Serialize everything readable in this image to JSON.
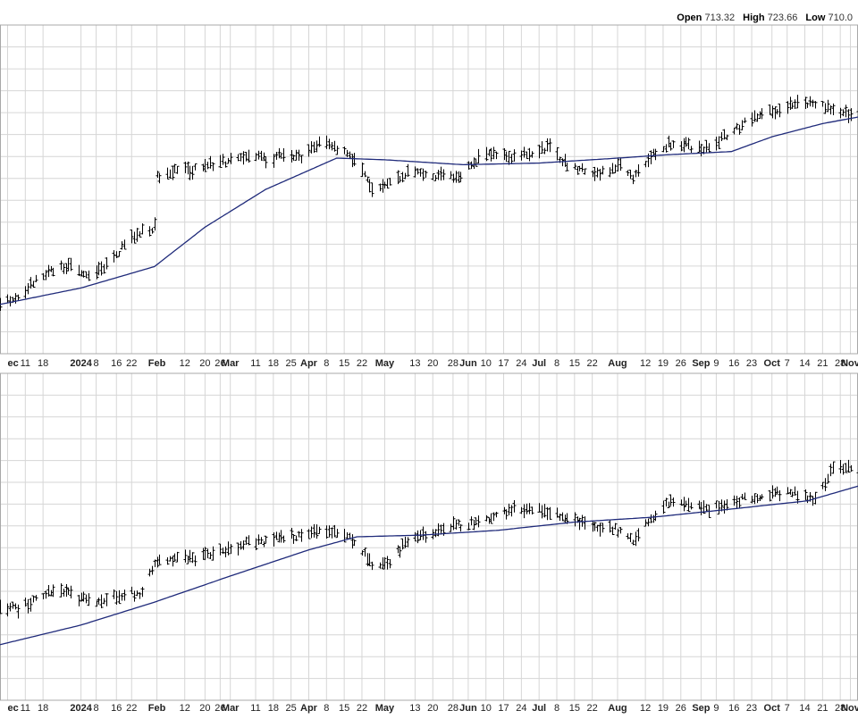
{
  "readout": {
    "open_label": "Open",
    "open_value": "713.32",
    "high_label": "High",
    "high_value": "723.66",
    "low_label": "Low",
    "low_value": "710.0"
  },
  "x_axis_labels": [
    {
      "date": "2023-12-04",
      "text": "ec",
      "bold": true
    },
    {
      "date": "2023-12-11",
      "text": "11",
      "bold": false
    },
    {
      "date": "2023-12-18",
      "text": "18",
      "bold": false
    },
    {
      "date": "2024-01-02",
      "text": "2024",
      "bold": true
    },
    {
      "date": "2024-01-08",
      "text": "8",
      "bold": false
    },
    {
      "date": "2024-01-16",
      "text": "16",
      "bold": false
    },
    {
      "date": "2024-01-22",
      "text": "22",
      "bold": false
    },
    {
      "date": "2024-02-01",
      "text": "Feb",
      "bold": true
    },
    {
      "date": "2024-02-12",
      "text": "12",
      "bold": false
    },
    {
      "date": "2024-02-20",
      "text": "20",
      "bold": false
    },
    {
      "date": "2024-02-26",
      "text": "26",
      "bold": false
    },
    {
      "date": "2024-03-01",
      "text": "Mar",
      "bold": true
    },
    {
      "date": "2024-03-11",
      "text": "11",
      "bold": false
    },
    {
      "date": "2024-03-18",
      "text": "18",
      "bold": false
    },
    {
      "date": "2024-03-25",
      "text": "25",
      "bold": false
    },
    {
      "date": "2024-04-01",
      "text": "Apr",
      "bold": true
    },
    {
      "date": "2024-04-08",
      "text": "8",
      "bold": false
    },
    {
      "date": "2024-04-15",
      "text": "15",
      "bold": false
    },
    {
      "date": "2024-04-22",
      "text": "22",
      "bold": false
    },
    {
      "date": "2024-05-01",
      "text": "May",
      "bold": true
    },
    {
      "date": "2024-05-13",
      "text": "13",
      "bold": false
    },
    {
      "date": "2024-05-20",
      "text": "20",
      "bold": false
    },
    {
      "date": "2024-05-28",
      "text": "28",
      "bold": false
    },
    {
      "date": "2024-06-03",
      "text": "Jun",
      "bold": true
    },
    {
      "date": "2024-06-10",
      "text": "10",
      "bold": false
    },
    {
      "date": "2024-06-17",
      "text": "17",
      "bold": false
    },
    {
      "date": "2024-06-24",
      "text": "24",
      "bold": false
    },
    {
      "date": "2024-07-01",
      "text": "Jul",
      "bold": true
    },
    {
      "date": "2024-07-08",
      "text": "8",
      "bold": false
    },
    {
      "date": "2024-07-15",
      "text": "15",
      "bold": false
    },
    {
      "date": "2024-07-22",
      "text": "22",
      "bold": false
    },
    {
      "date": "2024-08-01",
      "text": "Aug",
      "bold": true
    },
    {
      "date": "2024-08-12",
      "text": "12",
      "bold": false
    },
    {
      "date": "2024-08-19",
      "text": "19",
      "bold": false
    },
    {
      "date": "2024-08-26",
      "text": "26",
      "bold": false
    },
    {
      "date": "2024-09-03",
      "text": "Sep",
      "bold": true
    },
    {
      "date": "2024-09-09",
      "text": "9",
      "bold": false
    },
    {
      "date": "2024-09-16",
      "text": "16",
      "bold": false
    },
    {
      "date": "2024-09-23",
      "text": "23",
      "bold": false
    },
    {
      "date": "2024-10-01",
      "text": "Oct",
      "bold": true
    },
    {
      "date": "2024-10-07",
      "text": "7",
      "bold": false
    },
    {
      "date": "2024-10-14",
      "text": "14",
      "bold": false
    },
    {
      "date": "2024-10-21",
      "text": "21",
      "bold": false
    },
    {
      "date": "2024-10-28",
      "text": "28",
      "bold": false
    },
    {
      "date": "2024-11-01",
      "text": "Nov",
      "bold": true
    }
  ],
  "colors": {
    "grid": "#d6d6d6",
    "panel_border": "#a8a8a8",
    "price_bar": "#000000",
    "moving_average": "#1f2a7a",
    "axis_text": "#222222",
    "gap": "#ffffff"
  },
  "chart_data": [
    {
      "type": "ohlc",
      "title": "",
      "x_start": "2023-12-01",
      "x_end": "2024-11-04",
      "y_range": [
        0.0,
        1.0
      ],
      "grid": true,
      "moving_average_line": true,
      "anchors": [
        [
          "2023-12-01",
          0.155
        ],
        [
          "2023-12-08",
          0.175
        ],
        [
          "2023-12-15",
          0.225
        ],
        [
          "2023-12-22",
          0.255
        ],
        [
          "2023-12-29",
          0.265
        ],
        [
          "2024-01-05",
          0.23
        ],
        [
          "2024-01-12",
          0.27
        ],
        [
          "2024-01-19",
          0.33
        ],
        [
          "2024-01-26",
          0.375
        ],
        [
          "2024-01-31",
          0.385
        ],
        [
          "2024-02-01",
          0.54
        ],
        [
          "2024-02-09",
          0.555
        ],
        [
          "2024-02-16",
          0.56
        ],
        [
          "2024-02-23",
          0.575
        ],
        [
          "2024-02-29",
          0.585
        ],
        [
          "2024-03-08",
          0.6
        ],
        [
          "2024-03-15",
          0.59
        ],
        [
          "2024-03-22",
          0.605
        ],
        [
          "2024-03-29",
          0.6
        ],
        [
          "2024-04-05",
          0.64
        ],
        [
          "2024-04-12",
          0.625
        ],
        [
          "2024-04-19",
          0.59
        ],
        [
          "2024-04-26",
          0.5
        ],
        [
          "2024-05-03",
          0.52
        ],
        [
          "2024-05-10",
          0.555
        ],
        [
          "2024-05-17",
          0.545
        ],
        [
          "2024-05-24",
          0.54
        ],
        [
          "2024-05-31",
          0.545
        ],
        [
          "2024-06-07",
          0.595
        ],
        [
          "2024-06-14",
          0.605
        ],
        [
          "2024-06-21",
          0.6
        ],
        [
          "2024-06-28",
          0.615
        ],
        [
          "2024-07-05",
          0.63
        ],
        [
          "2024-07-12",
          0.57
        ],
        [
          "2024-07-19",
          0.56
        ],
        [
          "2024-07-26",
          0.55
        ],
        [
          "2024-08-02",
          0.575
        ],
        [
          "2024-08-07",
          0.535
        ],
        [
          "2024-08-14",
          0.6
        ],
        [
          "2024-08-21",
          0.64
        ],
        [
          "2024-08-28",
          0.635
        ],
        [
          "2024-09-06",
          0.62
        ],
        [
          "2024-09-13",
          0.665
        ],
        [
          "2024-09-20",
          0.7
        ],
        [
          "2024-09-27",
          0.735
        ],
        [
          "2024-10-04",
          0.74
        ],
        [
          "2024-10-11",
          0.77
        ],
        [
          "2024-10-18",
          0.76
        ],
        [
          "2024-10-25",
          0.75
        ],
        [
          "2024-11-01",
          0.72
        ]
      ],
      "ma_anchors": [
        [
          "2023-12-01",
          0.15
        ],
        [
          "2024-01-02",
          0.2
        ],
        [
          "2024-01-31",
          0.265
        ],
        [
          "2024-02-20",
          0.385
        ],
        [
          "2024-03-15",
          0.5
        ],
        [
          "2024-04-12",
          0.595
        ],
        [
          "2024-05-01",
          0.59
        ],
        [
          "2024-06-01",
          0.575
        ],
        [
          "2024-07-01",
          0.58
        ],
        [
          "2024-08-01",
          0.595
        ],
        [
          "2024-08-20",
          0.605
        ],
        [
          "2024-09-15",
          0.615
        ],
        [
          "2024-10-01",
          0.66
        ],
        [
          "2024-10-21",
          0.7
        ],
        [
          "2024-11-04",
          0.72
        ]
      ]
    },
    {
      "type": "ohlc",
      "title": "",
      "x_start": "2023-12-01",
      "x_end": "2024-11-04",
      "y_range": [
        0.0,
        1.0
      ],
      "grid": true,
      "moving_average_line": true,
      "anchors": [
        [
          "2023-12-01",
          0.29
        ],
        [
          "2023-12-08",
          0.28
        ],
        [
          "2023-12-15",
          0.31
        ],
        [
          "2023-12-22",
          0.335
        ],
        [
          "2023-12-29",
          0.325
        ],
        [
          "2024-01-05",
          0.3
        ],
        [
          "2024-01-12",
          0.31
        ],
        [
          "2024-01-19",
          0.325
        ],
        [
          "2024-01-26",
          0.33
        ],
        [
          "2024-01-31",
          0.42
        ],
        [
          "2024-02-09",
          0.435
        ],
        [
          "2024-02-16",
          0.43
        ],
        [
          "2024-02-23",
          0.45
        ],
        [
          "2024-02-29",
          0.465
        ],
        [
          "2024-03-08",
          0.48
        ],
        [
          "2024-03-15",
          0.485
        ],
        [
          "2024-03-22",
          0.5
        ],
        [
          "2024-03-29",
          0.505
        ],
        [
          "2024-04-05",
          0.52
        ],
        [
          "2024-04-12",
          0.515
        ],
        [
          "2024-04-19",
          0.49
        ],
        [
          "2024-04-26",
          0.42
        ],
        [
          "2024-05-03",
          0.425
        ],
        [
          "2024-05-10",
          0.49
        ],
        [
          "2024-05-17",
          0.505
        ],
        [
          "2024-05-24",
          0.53
        ],
        [
          "2024-05-31",
          0.535
        ],
        [
          "2024-06-07",
          0.545
        ],
        [
          "2024-06-14",
          0.56
        ],
        [
          "2024-06-21",
          0.585
        ],
        [
          "2024-06-28",
          0.59
        ],
        [
          "2024-07-05",
          0.575
        ],
        [
          "2024-07-12",
          0.555
        ],
        [
          "2024-07-19",
          0.54
        ],
        [
          "2024-07-26",
          0.53
        ],
        [
          "2024-08-02",
          0.52
        ],
        [
          "2024-08-07",
          0.485
        ],
        [
          "2024-08-14",
          0.555
        ],
        [
          "2024-08-21",
          0.605
        ],
        [
          "2024-08-28",
          0.6
        ],
        [
          "2024-09-06",
          0.585
        ],
        [
          "2024-09-13",
          0.6
        ],
        [
          "2024-09-20",
          0.615
        ],
        [
          "2024-09-27",
          0.625
        ],
        [
          "2024-10-04",
          0.635
        ],
        [
          "2024-10-11",
          0.63
        ],
        [
          "2024-10-18",
          0.61
        ],
        [
          "2024-10-25",
          0.71
        ],
        [
          "2024-11-01",
          0.71
        ]
      ],
      "ma_anchors": [
        [
          "2023-12-01",
          0.17
        ],
        [
          "2024-01-02",
          0.23
        ],
        [
          "2024-01-31",
          0.3
        ],
        [
          "2024-03-01",
          0.38
        ],
        [
          "2024-04-01",
          0.46
        ],
        [
          "2024-04-20",
          0.5
        ],
        [
          "2024-05-15",
          0.505
        ],
        [
          "2024-06-15",
          0.52
        ],
        [
          "2024-07-15",
          0.545
        ],
        [
          "2024-08-15",
          0.56
        ],
        [
          "2024-09-15",
          0.585
        ],
        [
          "2024-10-15",
          0.61
        ],
        [
          "2024-11-04",
          0.655
        ]
      ]
    }
  ]
}
